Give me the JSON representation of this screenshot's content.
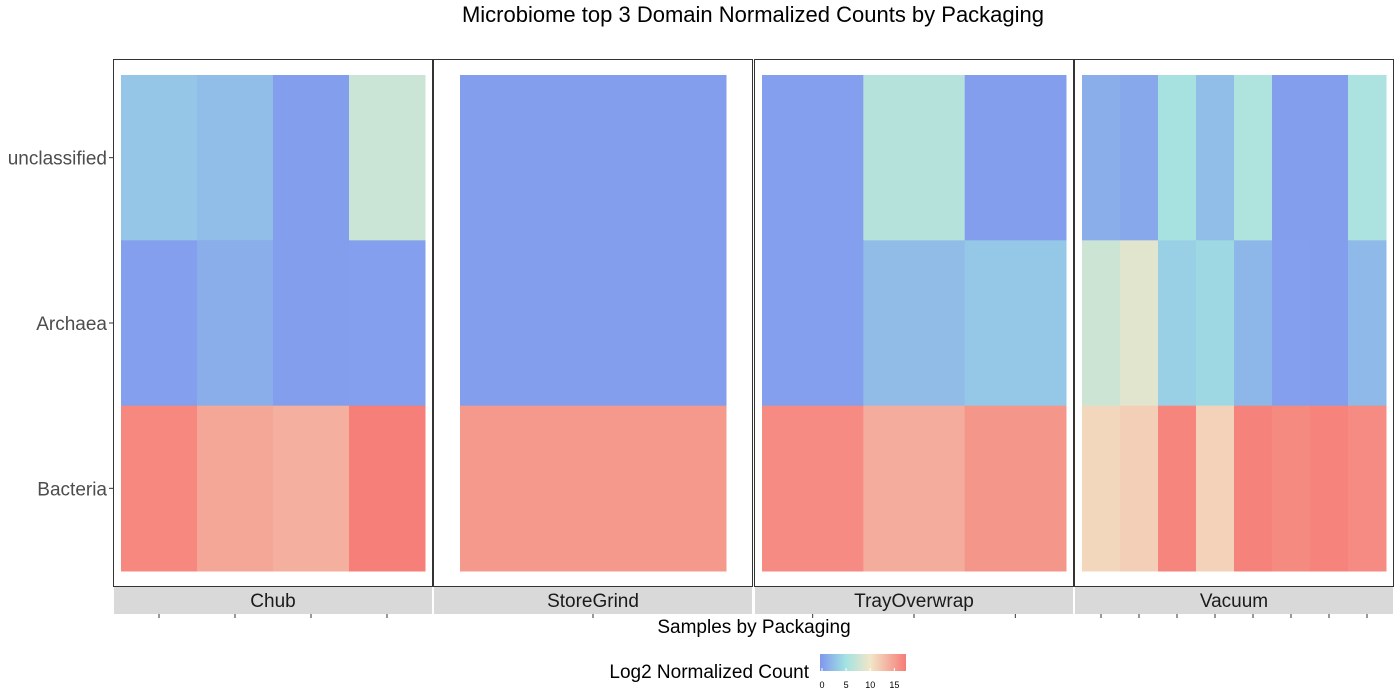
{
  "chart_data": {
    "type": "heatmap",
    "title": "Microbiome top 3 Domain Normalized Counts by Packaging",
    "xlabel": "Samples by Packaging",
    "ylabel": "",
    "rows": [
      "unclassified",
      "Archaea",
      "Bacteria"
    ],
    "color_scale": {
      "title": "Log2 Normalized Count",
      "domain": [
        0,
        17
      ],
      "ticks": [
        0,
        5,
        10,
        15
      ],
      "stops": [
        {
          "value": 0,
          "color": "#7f96ee"
        },
        {
          "value": 5,
          "color": "#a2e2e2"
        },
        {
          "value": 10,
          "color": "#f2e6c8"
        },
        {
          "value": 17,
          "color": "#f67c77"
        }
      ]
    },
    "facets": [
      {
        "name": "Chub",
        "samples": 4,
        "values": [
          [
            3.1,
            2.6,
            0.5,
            7.5
          ],
          [
            0.6,
            1.6,
            0.5,
            0.6
          ],
          [
            16.2,
            14.2,
            13.6,
            16.8
          ]
        ]
      },
      {
        "name": "StoreGrind",
        "samples": 1,
        "values": [
          [
            0.5
          ],
          [
            0.5
          ],
          [
            15.1
          ]
        ]
      },
      {
        "name": "TrayOverwrap",
        "samples": 3,
        "values": [
          [
            0.6,
            6.2,
            0.5
          ],
          [
            0.6,
            2.5,
            3.2
          ],
          [
            16.0,
            13.8,
            15.3
          ]
        ]
      },
      {
        "name": "Vacuum",
        "samples": 8,
        "values": [
          [
            1.6,
            1.2,
            5.3,
            2.6,
            5.8,
            0.5,
            0.5,
            5.6
          ],
          [
            7.6,
            9.0,
            3.8,
            4.4,
            2.2,
            0.6,
            0.5,
            2.3
          ],
          [
            11.0,
            11.5,
            16.4,
            11.3,
            16.6,
            16.1,
            16.5,
            16.0
          ]
        ]
      }
    ]
  }
}
